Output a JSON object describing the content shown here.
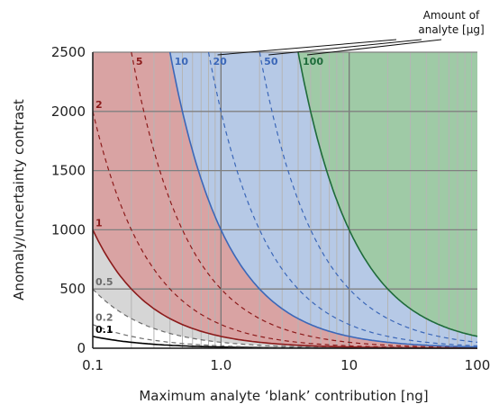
{
  "chart_data": {
    "type": "line",
    "xlabel": "Maximum analyte ‘blank’ contribution [ng]",
    "ylabel": "Anomaly/uncertainty contrast",
    "xscale": "log",
    "xlim": [
      0.1,
      100
    ],
    "ylim": [
      0,
      2500
    ],
    "x_ticks": [
      0.1,
      1,
      10,
      100
    ],
    "x_tick_labels": [
      "0.1",
      "1.0",
      "10",
      "100"
    ],
    "y_ticks": [
      0,
      500,
      1000,
      1500,
      2000,
      2500
    ],
    "y_tick_labels": [
      "0",
      "500",
      "1000",
      "1500",
      "2000",
      "2500"
    ],
    "grid": true,
    "annotation": [
      "Amount of",
      "analyte [µg]"
    ],
    "model": "contrast = 100 × amount / blank",
    "series": [
      {
        "name": "0.1",
        "amount": 0.1,
        "style": "solid",
        "color": "#000000",
        "fill": null
      },
      {
        "name": "0.2",
        "amount": 0.2,
        "style": "dashed",
        "color": "#6b6b6b",
        "fill": null
      },
      {
        "name": "0.5",
        "amount": 0.5,
        "style": "dashed",
        "color": "#6b6b6b",
        "fill": "#d6d6d6"
      },
      {
        "name": "1",
        "amount": 1,
        "style": "solid",
        "color": "#8b1a1a",
        "fill": "#d9a3a3"
      },
      {
        "name": "2",
        "amount": 2,
        "style": "dashed",
        "color": "#8b1a1a",
        "fill": null
      },
      {
        "name": "5",
        "amount": 5,
        "style": "dashed",
        "color": "#8b1a1a",
        "fill": null
      },
      {
        "name": "10",
        "amount": 10,
        "style": "solid",
        "color": "#3b67b8",
        "fill": "#b6c9e6"
      },
      {
        "name": "20",
        "amount": 20,
        "style": "dashed",
        "color": "#3b67b8",
        "fill": null
      },
      {
        "name": "50",
        "amount": 50,
        "style": "dashed",
        "color": "#3b67b8",
        "fill": null
      },
      {
        "name": "100",
        "amount": 100,
        "style": "solid",
        "color": "#1e6b3a",
        "fill": "#9fcaa6"
      }
    ]
  }
}
